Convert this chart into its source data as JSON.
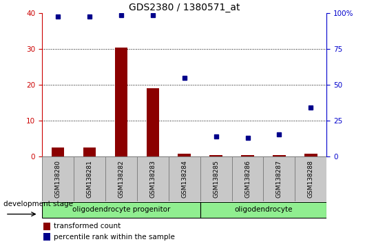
{
  "title": "GDS2380 / 1380571_at",
  "samples": [
    "GSM138280",
    "GSM138281",
    "GSM138282",
    "GSM138283",
    "GSM138284",
    "GSM138285",
    "GSM138286",
    "GSM138287",
    "GSM138288"
  ],
  "transformed_count": [
    2.5,
    2.5,
    30.5,
    19.0,
    0.7,
    0.3,
    0.3,
    0.3,
    0.7
  ],
  "percentile_rank": [
    98,
    98,
    99,
    99,
    55,
    14,
    13,
    15,
    34
  ],
  "groups": [
    {
      "label": "oligodendrocyte progenitor",
      "start": 0,
      "end": 4,
      "color": "#90EE90"
    },
    {
      "label": "oligodendrocyte",
      "start": 5,
      "end": 8,
      "color": "#90EE90"
    }
  ],
  "ylim_left": [
    0,
    40
  ],
  "ylim_right": [
    0,
    100
  ],
  "yticks_left": [
    0,
    10,
    20,
    30,
    40
  ],
  "yticks_right": [
    0,
    25,
    50,
    75,
    100
  ],
  "bar_color": "#8B0000",
  "dot_color": "#00008B",
  "background_color": "#ffffff",
  "tick_color_left": "#CC0000",
  "tick_color_right": "#0000CC",
  "legend_bar_label": "transformed count",
  "legend_dot_label": "percentile rank within the sample",
  "dev_stage_label": "development stage",
  "label_bg_color": "#c8c8c8",
  "label_border_color": "#808080"
}
